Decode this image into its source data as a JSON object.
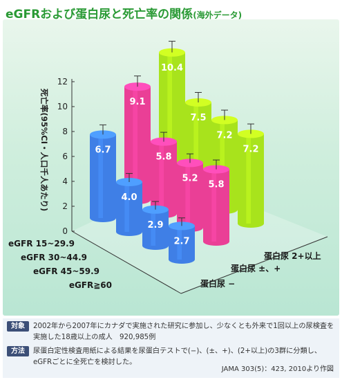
{
  "title": {
    "main": "eGFRおよび蛋白尿と死亡率の関係",
    "sub": "(海外データ)"
  },
  "chart_data": {
    "type": "bar",
    "ylabel": "死亡率(95%CI・人口千人あたり)",
    "ylim": [
      0,
      12
    ],
    "yticks": [
      "0",
      "2",
      "4",
      "6",
      "8",
      "10",
      "12"
    ],
    "egfr_categories": [
      "eGFR 15~29.9",
      "eGFR 30~44.9",
      "eGFR 45~59.9",
      "eGFR≧60"
    ],
    "series": [
      {
        "name": "蛋白尿 −",
        "color": "#3f7fe6",
        "values": [
          6.7,
          4.0,
          2.9,
          2.7
        ],
        "labels": [
          "6.7",
          "4.0",
          "2.9",
          "2.7"
        ]
      },
      {
        "name": "蛋白尿 ±、+",
        "color": "#ea3f96",
        "values": [
          9.1,
          5.8,
          5.2,
          5.8
        ],
        "labels": [
          "9.1",
          "5.8",
          "5.2",
          "5.8"
        ]
      },
      {
        "name": "蛋白尿 2+以上",
        "color": "#a8e31c",
        "values": [
          10.4,
          7.5,
          7.2,
          7.2
        ],
        "labels": [
          "10.4",
          "7.5",
          "7.2",
          "7.2"
        ]
      }
    ],
    "error_bars": "95%CI"
  },
  "notes": {
    "target_tag": "対象",
    "target_text": "2002年から2007年にカナダで実施された研究に参加し、少なくとも外来で1回以上の尿検査を実施した18歳以上の成人　920,985例",
    "method_tag": "方法",
    "method_text": "尿蛋白定性検査用紙による結果を尿蛋白テストで(−)、(±、+)、(2+以上)の3群に分類し、eGFRごとに全死亡を検討した。",
    "source": "JAMA 303(5)：423, 2010より作図"
  }
}
